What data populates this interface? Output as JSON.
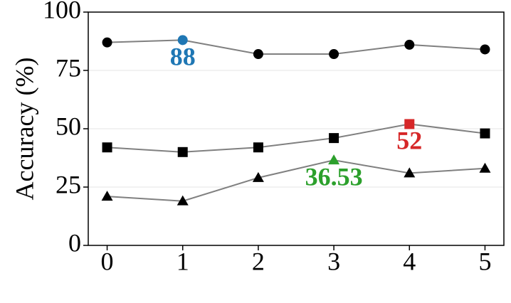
{
  "chart_data": {
    "type": "line",
    "y_label": "Accuracy (%)",
    "x": [
      0,
      1,
      2,
      3,
      4,
      5
    ],
    "xlim": [
      -0.25,
      5.25
    ],
    "xticks": [
      0,
      1,
      2,
      3,
      4,
      5
    ],
    "ylim": [
      0,
      100
    ],
    "yticks": [
      0,
      25,
      50,
      75,
      100
    ],
    "grid": true,
    "line_color": "#808080",
    "marker_color": "#000000",
    "series": [
      {
        "marker": "circle",
        "values": [
          87,
          88,
          82,
          82,
          86,
          84
        ],
        "highlight": {
          "index": 1,
          "color": "#1f77b4"
        }
      },
      {
        "marker": "square",
        "values": [
          42,
          40,
          42,
          46,
          52,
          48
        ],
        "highlight": {
          "index": 4,
          "color": "#d62728"
        }
      },
      {
        "marker": "triangle",
        "values": [
          21,
          19,
          29,
          36.53,
          31,
          33
        ],
        "highlight": {
          "index": 3,
          "color": "#2ca02c"
        }
      }
    ]
  }
}
